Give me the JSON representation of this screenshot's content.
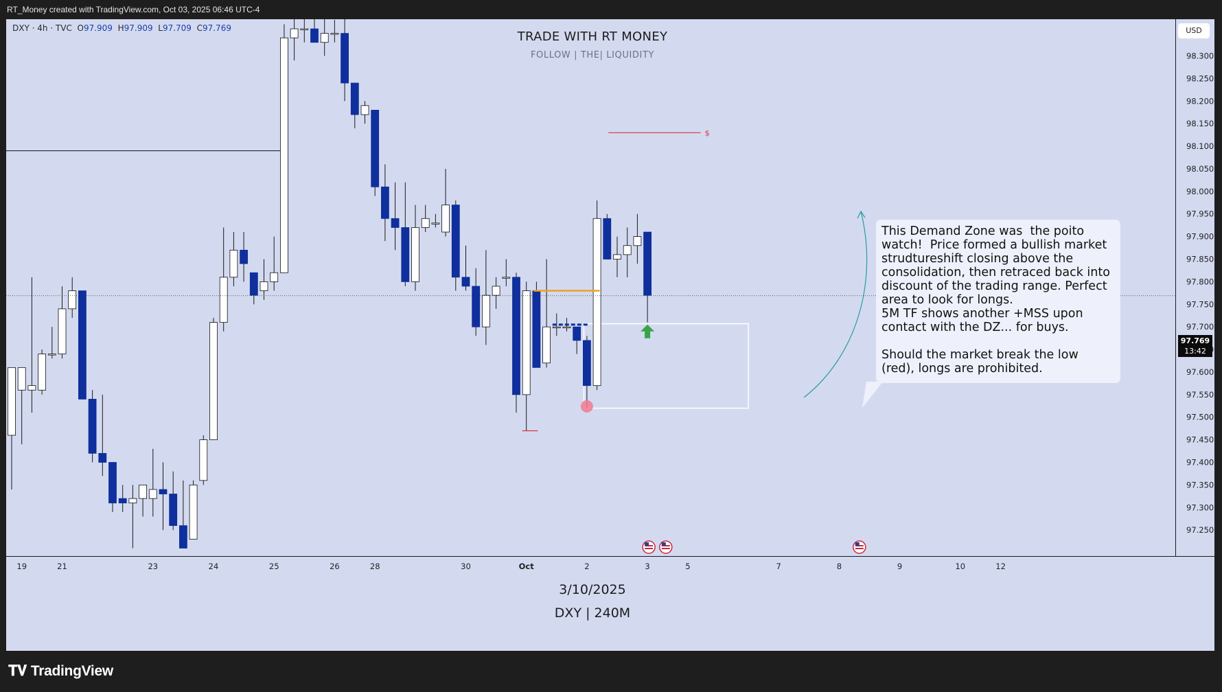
{
  "topbar_text": "RT_Money created with TradingView.com, Oct 03, 2025 06:46 UTC-4",
  "brand": "TradingView",
  "legend": {
    "symbol": "DXY · 4h · TVC",
    "O": "97.909",
    "H": "97.909",
    "L": "97.709",
    "C": "97.769"
  },
  "currency": "USD",
  "last_price": "97.769",
  "countdown": "13:42",
  "watermark": {
    "title": "TRADE WITH RT MONEY",
    "subtitle": "FOLLOW   |   THE|  LIQUIDITY",
    "date": "3/10/2025",
    "symbol": "DXY | 240M"
  },
  "annotation": "This Demand Zone was  the poito watch!  Price formed a bullish market strudtureshift closing above the consolidation, then retraced back into discount of the trading range. Perfect area to look for longs.\n5M TF shows another +MSS upon contact with the DZ... for buys.\n\nShould the market break the low (red), longs are prohibited.",
  "liquidity_marker": "$",
  "colors": {
    "background": "#d3daf0",
    "bear_candle": "#0f2f9c",
    "bull_candle": "#ffffff",
    "wick": "#1a1a1a",
    "liquidity_line": "#e0323c",
    "consolidation_line": "#f0a020",
    "demand_zone": "#ffffff",
    "arrow": "#3aa24a",
    "curve": "#2a9aa0"
  },
  "chart_data": {
    "type": "candlestick",
    "symbol": "DXY",
    "timeframe": "4h",
    "ylim": [
      97.2,
      98.36
    ],
    "y_ticks": [
      97.25,
      97.3,
      97.35,
      97.4,
      97.45,
      97.5,
      97.55,
      97.6,
      97.65,
      97.7,
      97.75,
      97.8,
      97.85,
      97.9,
      97.95,
      98.0,
      98.05,
      98.1,
      98.15,
      98.2,
      98.25,
      98.3
    ],
    "x_ticks": [
      {
        "label": "19",
        "index": 1
      },
      {
        "label": "21",
        "index": 5
      },
      {
        "label": "23",
        "index": 14
      },
      {
        "label": "24",
        "index": 20
      },
      {
        "label": "25",
        "index": 26
      },
      {
        "label": "26",
        "index": 32
      },
      {
        "label": "28",
        "index": 36
      },
      {
        "label": "30",
        "index": 45
      },
      {
        "label": "Oct",
        "index": 51
      },
      {
        "label": "2",
        "index": 57
      },
      {
        "label": "3",
        "index": 63
      },
      {
        "label": "5",
        "index": 67
      },
      {
        "label": "7",
        "index": 76
      },
      {
        "label": "8",
        "index": 82
      },
      {
        "label": "9",
        "index": 88
      },
      {
        "label": "10",
        "index": 94
      },
      {
        "label": "12",
        "index": 98
      }
    ],
    "candles": [
      [
        97.46,
        97.61,
        97.61,
        97.34
      ],
      [
        97.56,
        97.61,
        97.61,
        97.44
      ],
      [
        97.56,
        97.57,
        97.81,
        97.51
      ],
      [
        97.56,
        97.64,
        97.65,
        97.55
      ],
      [
        97.64,
        97.64,
        97.7,
        97.63
      ],
      [
        97.64,
        97.74,
        97.79,
        97.63
      ],
      [
        97.74,
        97.78,
        97.81,
        97.72
      ],
      [
        97.78,
        97.54,
        97.78,
        97.54
      ],
      [
        97.54,
        97.42,
        97.56,
        97.4
      ],
      [
        97.42,
        97.4,
        97.55,
        97.37
      ],
      [
        97.4,
        97.31,
        97.4,
        97.29
      ],
      [
        97.32,
        97.31,
        97.35,
        97.29
      ],
      [
        97.31,
        97.32,
        97.35,
        97.21
      ],
      [
        97.32,
        97.35,
        97.35,
        97.28
      ],
      [
        97.32,
        97.34,
        97.43,
        97.28
      ],
      [
        97.34,
        97.33,
        97.4,
        97.25
      ],
      [
        97.33,
        97.26,
        97.38,
        97.25
      ],
      [
        97.26,
        97.21,
        97.36,
        97.21
      ],
      [
        97.23,
        97.35,
        97.36,
        97.23
      ],
      [
        97.36,
        97.45,
        97.46,
        97.35
      ],
      [
        97.45,
        97.71,
        97.72,
        97.45
      ],
      [
        97.71,
        97.81,
        97.92,
        97.69
      ],
      [
        97.81,
        97.87,
        97.91,
        97.79
      ],
      [
        97.87,
        97.84,
        97.91,
        97.8
      ],
      [
        97.82,
        97.77,
        97.82,
        97.75
      ],
      [
        97.78,
        97.8,
        97.85,
        97.76
      ],
      [
        97.8,
        97.82,
        97.9,
        97.78
      ],
      [
        97.82,
        98.34,
        98.37,
        97.82
      ],
      [
        98.34,
        98.36,
        98.39,
        98.29
      ],
      [
        98.36,
        98.36,
        98.4,
        98.33
      ],
      [
        98.36,
        98.33,
        98.39,
        98.33
      ],
      [
        98.33,
        98.35,
        98.4,
        98.3
      ],
      [
        98.35,
        98.35,
        98.38,
        98.33
      ],
      [
        98.35,
        98.24,
        98.39,
        98.2
      ],
      [
        98.24,
        98.17,
        98.24,
        98.14
      ],
      [
        98.17,
        98.19,
        98.2,
        98.15
      ],
      [
        98.18,
        98.01,
        98.18,
        97.99
      ],
      [
        98.01,
        97.94,
        98.06,
        97.89
      ],
      [
        97.94,
        97.92,
        98.02,
        97.87
      ],
      [
        97.92,
        97.8,
        98.02,
        97.79
      ],
      [
        97.8,
        97.92,
        97.97,
        97.78
      ],
      [
        97.92,
        97.94,
        97.97,
        97.91
      ],
      [
        97.93,
        97.93,
        97.95,
        97.92
      ],
      [
        97.91,
        97.97,
        98.05,
        97.9
      ],
      [
        97.97,
        97.81,
        97.98,
        97.78
      ],
      [
        97.81,
        97.79,
        97.88,
        97.78
      ],
      [
        97.79,
        97.7,
        97.83,
        97.68
      ],
      [
        97.7,
        97.77,
        97.87,
        97.66
      ],
      [
        97.77,
        97.79,
        97.81,
        97.74
      ],
      [
        97.81,
        97.81,
        97.85,
        97.79
      ],
      [
        97.81,
        97.55,
        97.82,
        97.51
      ],
      [
        97.55,
        97.78,
        97.8,
        97.47
      ],
      [
        97.78,
        97.61,
        97.8,
        97.61
      ],
      [
        97.62,
        97.7,
        97.85,
        97.61
      ],
      [
        97.7,
        97.7,
        97.73,
        97.68
      ],
      [
        97.7,
        97.7,
        97.72,
        97.69
      ],
      [
        97.7,
        97.67,
        97.7,
        97.64
      ],
      [
        97.67,
        97.57,
        97.68,
        97.52
      ],
      [
        97.57,
        97.94,
        97.98,
        97.56
      ],
      [
        97.94,
        97.85,
        97.95,
        97.85
      ],
      [
        97.85,
        97.86,
        97.9,
        97.81
      ],
      [
        97.86,
        97.88,
        97.92,
        97.81
      ],
      [
        97.88,
        97.9,
        97.95,
        97.84
      ],
      [
        97.91,
        97.77,
        97.91,
        97.71
      ]
    ],
    "demand_zone": {
      "x_start": 56.7,
      "x_end": 73.0,
      "top": 97.707,
      "bottom": 97.52
    },
    "liquidity_high": {
      "price": 98.13,
      "x_start": 59,
      "x_end": 68
    },
    "sell_side_low": {
      "price": 97.47,
      "x_start": 51,
      "x_end": 52
    },
    "consolidation": {
      "price": 97.78,
      "x_start": 52,
      "x_end": 58
    },
    "consolidation_dashes": {
      "price": 97.705,
      "x_start": 54,
      "x_end": 57
    },
    "previous_high_line": {
      "price": 98.09,
      "x_start": 0,
      "x_end": 27
    },
    "sweep_marker": {
      "index": 57,
      "price": 97.524
    },
    "entry_arrow": {
      "index": 63,
      "price": 97.69
    },
    "event_icons": [
      {
        "index": 63
      },
      {
        "index": 64
      },
      {
        "index": 84
      }
    ]
  }
}
